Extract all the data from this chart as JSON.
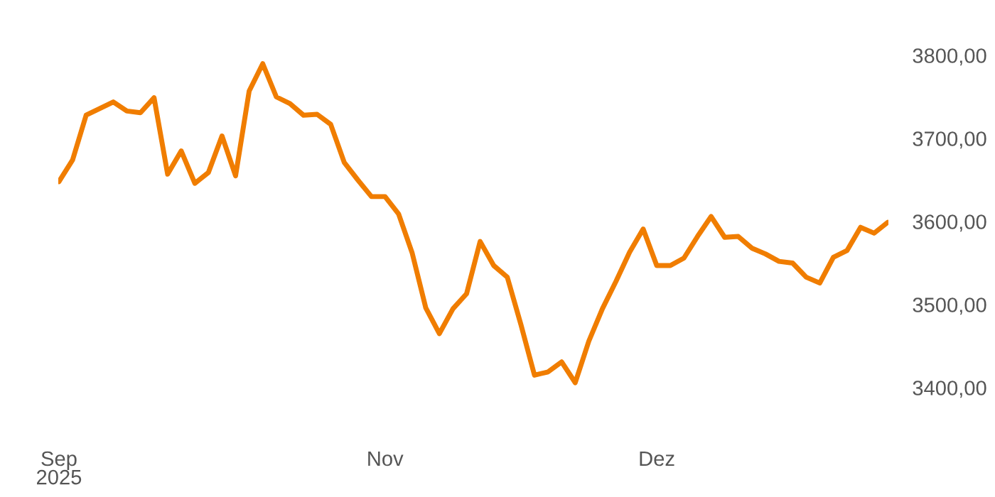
{
  "chart_data": {
    "type": "line",
    "color": "#f07d00",
    "categories": [
      "Sep\n2025",
      null,
      null,
      null,
      null,
      null,
      null,
      null,
      null,
      null,
      null,
      null,
      null,
      null,
      null,
      null,
      null,
      null,
      null,
      null,
      null,
      null,
      null,
      null,
      "Nov",
      null,
      null,
      null,
      null,
      null,
      null,
      null,
      null,
      null,
      null,
      null,
      null,
      null,
      null,
      null,
      null,
      null,
      null,
      null,
      "Dez",
      null,
      null,
      null,
      null,
      null,
      null,
      null,
      null,
      null,
      null,
      null,
      null,
      null,
      null,
      null,
      null,
      null
    ],
    "values": [
      3648,
      3674,
      3728,
      3736,
      3744,
      3733,
      3731,
      3749,
      3657,
      3685,
      3646,
      3659,
      3703,
      3655,
      3757,
      3790,
      3750,
      3742,
      3728,
      3729,
      3717,
      3671,
      3650,
      3630,
      3630,
      3609,
      3562,
      3496,
      3465,
      3495,
      3513,
      3576,
      3547,
      3533,
      3476,
      3415,
      3419,
      3431,
      3406,
      3456,
      3495,
      3528,
      3563,
      3591,
      3547,
      3547,
      3556,
      3582,
      3606,
      3581,
      3582,
      3568,
      3561,
      3552,
      3550,
      3533,
      3526,
      3557,
      3565,
      3593,
      3586,
      3599
    ],
    "ylim": [
      3400,
      3800
    ],
    "yticks": [
      {
        "value": 3400,
        "label": "3400,00"
      },
      {
        "value": 3500,
        "label": "3500,00"
      },
      {
        "value": 3600,
        "label": "3600,00"
      },
      {
        "value": 3700,
        "label": "3700,00"
      },
      {
        "value": 3800,
        "label": "3800,00"
      }
    ],
    "grid": false,
    "legend": false,
    "line_style": "solid",
    "marker": "none"
  }
}
